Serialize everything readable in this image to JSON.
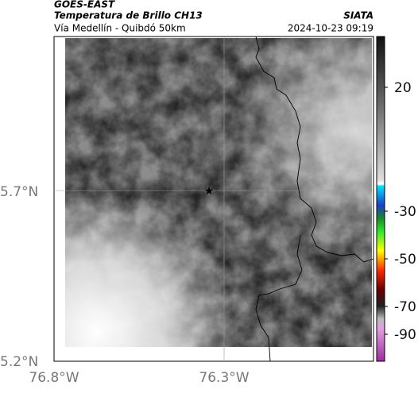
{
  "header": {
    "title": "GOES-EAST",
    "subtitle": "Temperatura de Brillo CH13",
    "route": "Vía Medellín - Quibdó 50km",
    "source": "SIATA",
    "timestamp": "2024-10-23 09:19"
  },
  "map": {
    "lat_labels": [
      "5.7°N",
      "5.2°N"
    ],
    "lon_labels": [
      "76.8°W",
      "76.3°W"
    ]
  },
  "colorbar": {
    "ticks": [
      "20",
      "-30",
      "-50",
      "-70",
      "-90"
    ]
  }
}
